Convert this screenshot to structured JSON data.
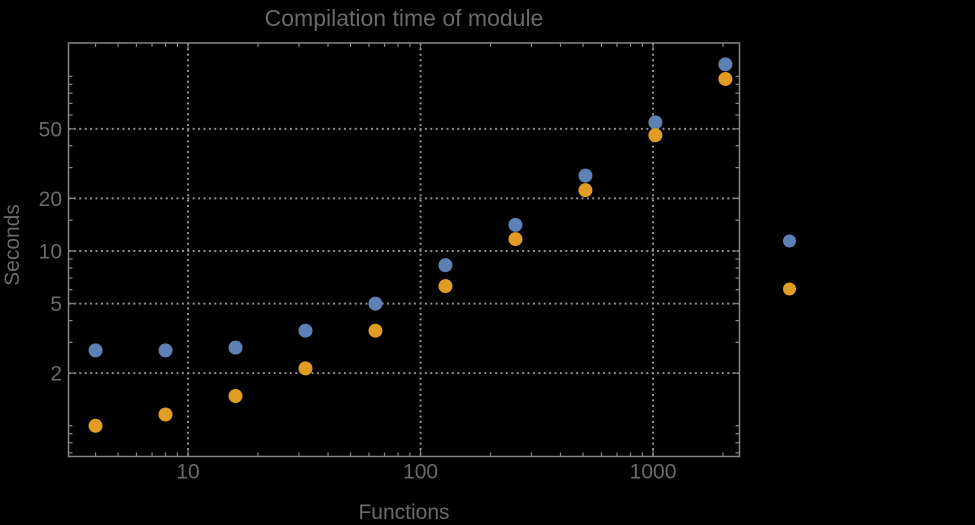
{
  "chart_data": {
    "type": "scatter",
    "title": "Compilation time of module",
    "xlabel": "Functions",
    "ylabel": "Seconds",
    "x_scale": "log",
    "y_scale": "log",
    "xlim": [
      3.06,
      2355
    ],
    "ylim": [
      0.667,
      155
    ],
    "grid": "dotted",
    "legend_position": "right-outside",
    "x": [
      4,
      8,
      16,
      32,
      64,
      128,
      256,
      512,
      1024,
      2048
    ],
    "series": [
      {
        "name": "series-1-blue",
        "color": "#5e81b5",
        "values": [
          2.7,
          2.7,
          2.8,
          3.5,
          5.0,
          8.3,
          14.1,
          27,
          54.5,
          117
        ]
      },
      {
        "name": "series-2-orange",
        "color": "#e19c24",
        "values": [
          1.0,
          1.16,
          1.48,
          2.13,
          3.5,
          6.3,
          11.7,
          22.3,
          46,
          96.5
        ]
      }
    ],
    "x_ticks": {
      "major": [
        10,
        100,
        1000
      ],
      "labels": [
        "10",
        "100",
        "1000"
      ],
      "minor": [
        4,
        5,
        6,
        7,
        8,
        9,
        20,
        30,
        40,
        50,
        60,
        70,
        80,
        90,
        200,
        300,
        400,
        500,
        600,
        700,
        800,
        900,
        2000
      ]
    },
    "y_ticks": {
      "major": [
        2,
        5,
        10,
        20,
        50
      ],
      "labels": [
        "2",
        "5",
        "10",
        "20",
        "50"
      ],
      "minor": [
        0.7,
        0.8,
        0.9,
        1,
        3,
        4,
        6,
        7,
        8,
        9,
        15,
        30,
        40,
        60,
        70,
        80,
        90,
        100
      ]
    },
    "x_grid": [
      10,
      100,
      1000
    ],
    "y_grid": [
      2,
      5,
      10,
      20,
      50
    ],
    "legend": {
      "entries": [
        {
          "label": "",
          "color": "#5e81b5"
        },
        {
          "label": "",
          "color": "#e19c24"
        }
      ]
    }
  },
  "colors": {
    "background": "#000000",
    "frame": "#858585",
    "grid": "#8f8f8f",
    "text": "#6a6a6a",
    "series1": "#5e81b5",
    "series2": "#e19c24"
  }
}
